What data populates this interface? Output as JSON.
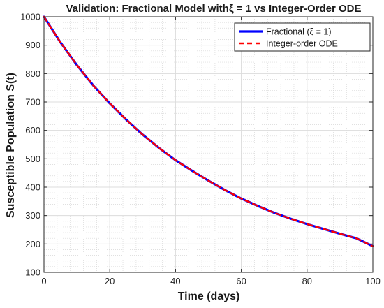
{
  "chart_data": {
    "type": "line",
    "title": "Validation: Fractional Model withξ = 1 vs Integer-Order ODE",
    "xlabel": "Time (days)",
    "ylabel": "Susceptible Population S(t)",
    "xlim": [
      0,
      100
    ],
    "ylim": [
      100,
      1000
    ],
    "xticks": [
      0,
      20,
      40,
      60,
      80,
      100
    ],
    "yticks": [
      100,
      200,
      300,
      400,
      500,
      600,
      700,
      800,
      900,
      1000
    ],
    "grid": true,
    "minor_grid": true,
    "legend_position": "top-right",
    "x": [
      0,
      5,
      10,
      15,
      20,
      25,
      30,
      35,
      40,
      45,
      50,
      55,
      60,
      65,
      70,
      75,
      80,
      85,
      90,
      95,
      100
    ],
    "series": [
      {
        "name": "Fractional (ξ = 1)",
        "color": "#0000ff",
        "style": "solid",
        "values": [
          1000,
          910,
          830,
          758,
          695,
          638,
          585,
          538,
          495,
          458,
          423,
          390,
          360,
          334,
          310,
          289,
          270,
          253,
          236,
          220,
          192
        ]
      },
      {
        "name": "Integer-order ODE",
        "color": "#ff0000",
        "style": "dashed",
        "values": [
          1000,
          910,
          830,
          758,
          695,
          638,
          585,
          538,
          495,
          458,
          423,
          390,
          360,
          334,
          310,
          289,
          270,
          253,
          236,
          220,
          192
        ]
      }
    ]
  }
}
